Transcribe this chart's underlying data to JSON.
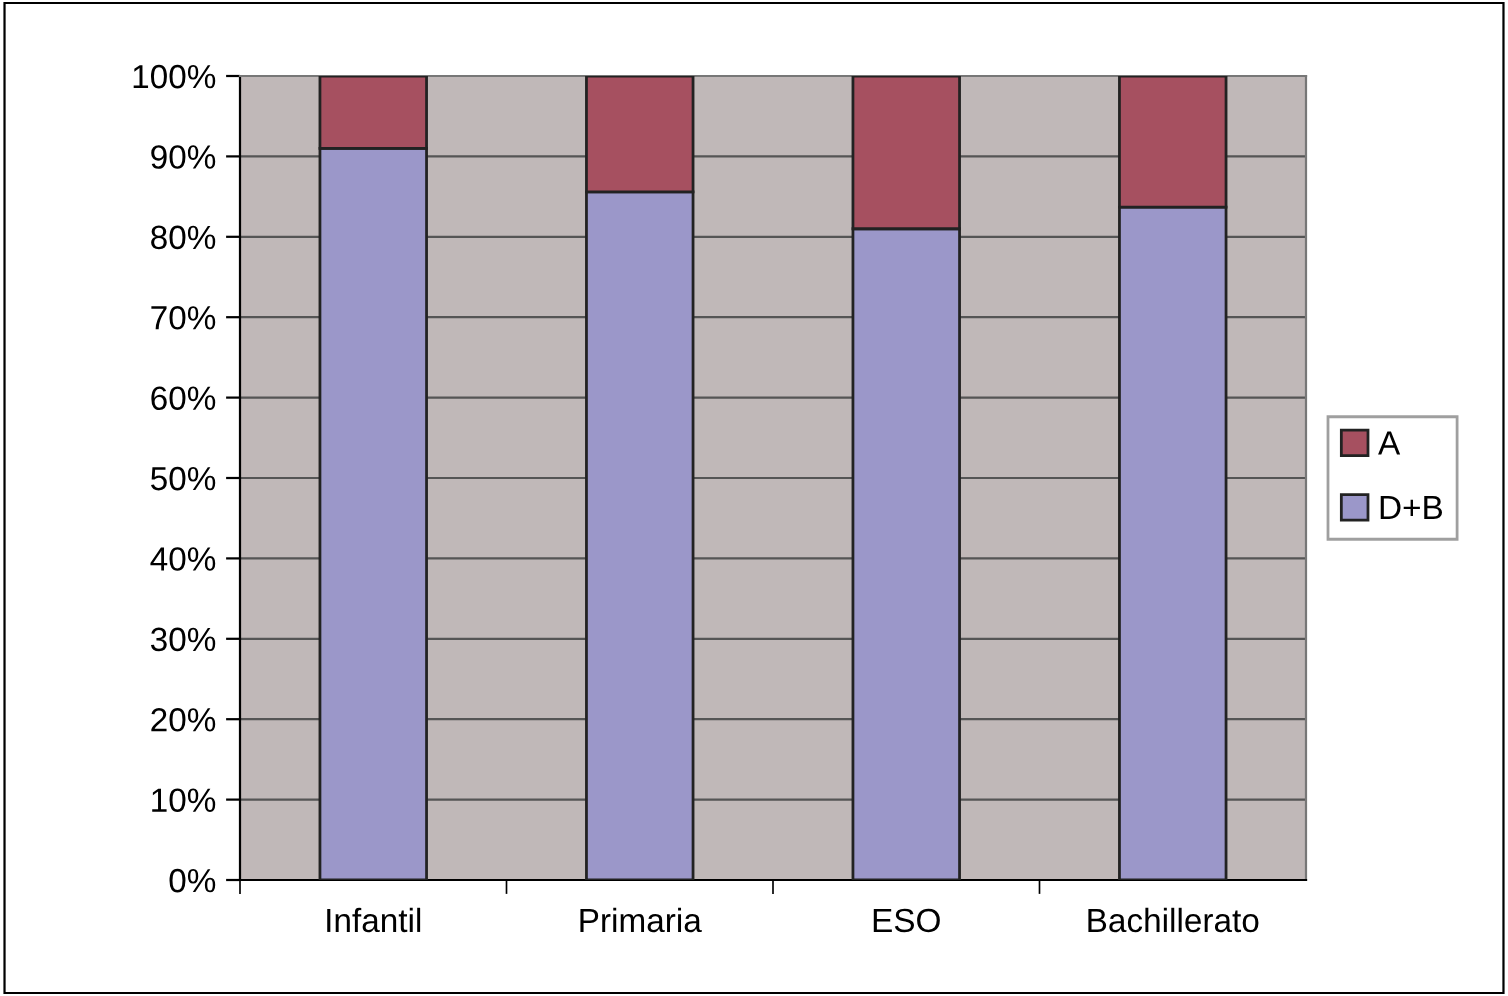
{
  "chart_data": {
    "type": "bar",
    "stacked": true,
    "categories": [
      "Infantil",
      "Primaria",
      "ESO",
      "Bachillerato"
    ],
    "series": [
      {
        "name": "D+B",
        "color": "#9b97c9",
        "values": [
          91,
          85.6,
          81,
          83.7
        ]
      },
      {
        "name": "A",
        "color": "#a65060",
        "values": [
          9,
          14.4,
          19,
          16.3
        ]
      }
    ],
    "ylim": [
      0,
      100
    ],
    "yticks": [
      {
        "value": 0,
        "label": "0%"
      },
      {
        "value": 10,
        "label": "10%"
      },
      {
        "value": 20,
        "label": "20%"
      },
      {
        "value": 30,
        "label": "30%"
      },
      {
        "value": 40,
        "label": "40%"
      },
      {
        "value": 50,
        "label": "50%"
      },
      {
        "value": 60,
        "label": "60%"
      },
      {
        "value": 70,
        "label": "70%"
      },
      {
        "value": 80,
        "label": "80%"
      },
      {
        "value": 90,
        "label": "90%"
      },
      {
        "value": 100,
        "label": "100%"
      }
    ],
    "grid": "y",
    "legend": "right"
  }
}
